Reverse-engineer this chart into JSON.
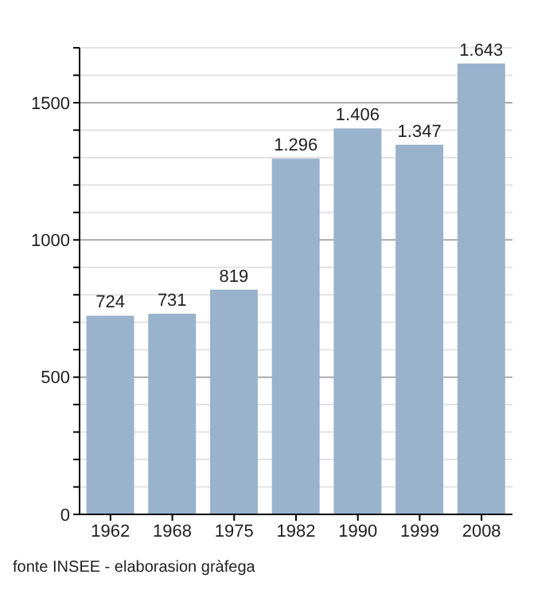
{
  "chart_data": {
    "type": "bar",
    "categories": [
      "1962",
      "1968",
      "1975",
      "1982",
      "1990",
      "1999",
      "2008"
    ],
    "values": [
      724,
      731,
      819,
      1296,
      1406,
      1347,
      1643
    ],
    "value_labels": [
      "724",
      "731",
      "819",
      "1.296",
      "1.406",
      "1.347",
      "1.643"
    ],
    "color": "#99b3cc",
    "ylim": [
      0,
      1700
    ],
    "yticks": [
      0,
      {
        "value": 100,
        "label": null
      },
      {
        "value": 200,
        "label": null
      },
      {
        "value": 300,
        "label": null
      },
      {
        "value": 400,
        "label": null
      },
      500,
      {
        "value": 600,
        "label": null
      },
      {
        "value": 700,
        "label": null
      },
      {
        "value": 800,
        "label": null
      },
      {
        "value": 900,
        "label": null
      },
      1000,
      {
        "value": 1100,
        "label": null
      },
      {
        "value": 1200,
        "label": null
      },
      {
        "value": 1300,
        "label": null
      },
      {
        "value": 1400,
        "label": null
      },
      1500,
      {
        "value": 1600,
        "label": null
      },
      {
        "value": 1700,
        "label": null
      }
    ],
    "grid": "y",
    "annotations": [
      "fonte INSEE - elaborasion gràfega"
    ]
  }
}
